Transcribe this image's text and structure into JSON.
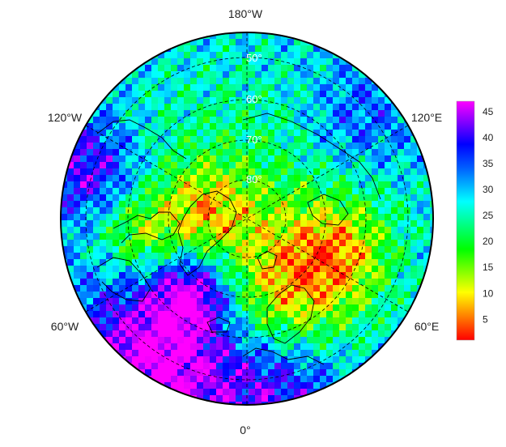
{
  "map": {
    "projection": "north polar stereographic",
    "longitude_labels": {
      "top": "180°W",
      "upper_left": "120°W",
      "upper_right": "120°E",
      "lower_left": "60°W",
      "lower_right": "60°E",
      "bottom": "0°"
    },
    "latitude_labels": [
      "50°",
      "60°",
      "70°",
      "80°"
    ],
    "grid": "dashed",
    "coastlines": true
  },
  "colorbar": {
    "ticks": [
      "45",
      "40",
      "35",
      "30",
      "25",
      "20",
      "15",
      "10",
      "5"
    ],
    "range": [
      1,
      47
    ],
    "colormap": [
      "#ff0000",
      "#ff7f00",
      "#ffff00",
      "#00ff00",
      "#00ffff",
      "#0000ff",
      "#ff00ff"
    ]
  },
  "colors": {
    "background": "#ffffff",
    "outline": "#000000",
    "grid": "#000000"
  }
}
